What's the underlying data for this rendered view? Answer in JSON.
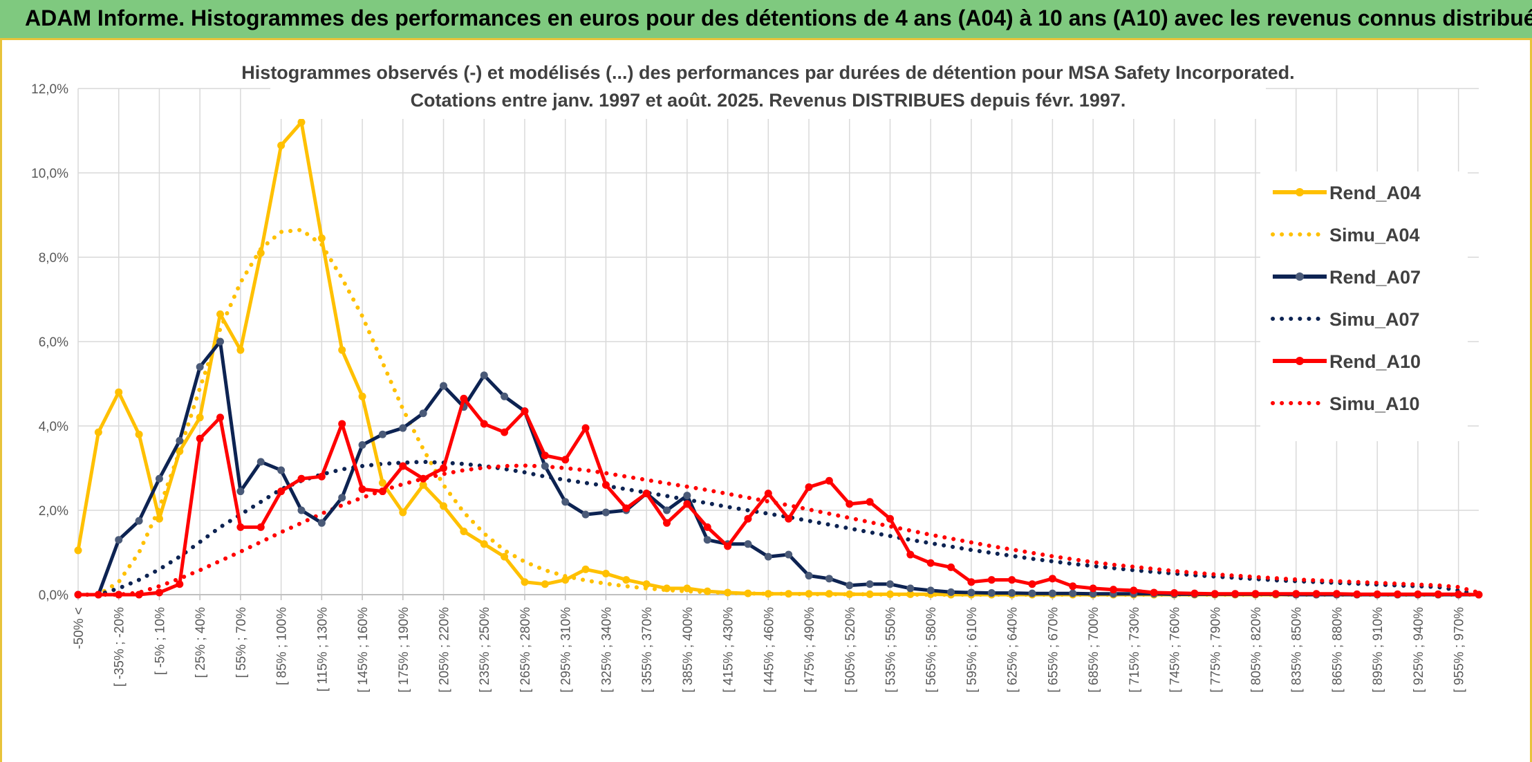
{
  "banner": {
    "title": "ADAM Informe. Histogrammes des performances en euros pour des détentions de 4 ans (A04) à 10 ans (A10) avec les revenus connus distribués"
  },
  "chart_data": {
    "type": "line",
    "title": "Histogrammes observés (-) et modélisés (...) des performances par durées de détention pour MSA Safety Incorporated.",
    "subtitle": "Cotations entre janv. 1997 et août. 2025. Revenus DISTRIBUES depuis févr. 1997.",
    "xlabel": "",
    "ylabel": "",
    "ylim": [
      0,
      12
    ],
    "y_unit": "%",
    "y_ticks": [
      "0,0%",
      "2,0%",
      "4,0%",
      "6,0%",
      "8,0%",
      "10,0%",
      "12,0%"
    ],
    "grid": true,
    "legend_position": "right",
    "x_labels": [
      "-50% <",
      "[ -35% ; -20%",
      "[ -5% ; 10%",
      "[ 25% ; 40%",
      "[ 55% ; 70%",
      "[ 85% ; 100%",
      "[ 115% ; 130%",
      "[ 145% ; 160%",
      "[ 175% ; 190%",
      "[ 205% ; 220%",
      "[ 235% ; 250%",
      "[ 265% ; 280%",
      "[ 295% ; 310%",
      "[ 325% ; 340%",
      "[ 355% ; 370%",
      "[ 385% ; 400%",
      "[ 415% ; 430%",
      "[ 445% ; 460%",
      "[ 475% ; 490%",
      "[ 505% ; 520%",
      "[ 535% ; 550%",
      "[ 565% ; 580%",
      "[ 595% ; 610%",
      "[ 625% ; 640%",
      "[ 655% ; 670%",
      "[ 685% ; 700%",
      "[ 715% ; 730%",
      "[ 745% ; 760%",
      "[ 775% ; 790%",
      "[ 805% ; 820%",
      "[ 835% ; 850%",
      "[ 865% ; 880%",
      "[ 895% ; 910%",
      "[ 925% ; 940%",
      "[ 955% ; 970%"
    ],
    "series": [
      {
        "name": "Rend_A04",
        "style": "solid",
        "color": "#ffc000",
        "marker": true,
        "values": [
          1.05,
          3.85,
          4.8,
          3.8,
          1.8,
          3.4,
          4.2,
          6.65,
          5.8,
          8.1,
          10.65,
          11.2,
          8.45,
          5.8,
          4.7,
          2.65,
          1.95,
          2.6,
          2.1,
          1.5,
          1.2,
          0.9,
          0.3,
          0.25,
          0.35,
          0.6,
          0.5,
          0.35,
          0.25,
          0.15,
          0.15,
          0.08,
          0.05,
          0.03,
          0.02,
          0.02,
          0.02,
          0.02,
          0.01,
          0.01,
          0.01,
          0.01,
          0.01,
          0.0,
          0,
          0,
          0,
          0,
          0,
          0,
          0,
          0,
          0,
          0,
          0,
          0,
          0,
          0,
          0,
          0,
          0,
          0,
          0,
          0,
          0,
          0,
          0,
          0,
          0,
          0
        ]
      },
      {
        "name": "Simu_A04",
        "style": "dotted",
        "color": "#ffc000",
        "marker": false,
        "values": [
          0,
          0,
          0.3,
          1.0,
          2.05,
          3.4,
          4.9,
          6.3,
          7.4,
          8.2,
          8.6,
          8.65,
          8.3,
          7.5,
          6.6,
          5.5,
          4.4,
          3.45,
          2.6,
          1.95,
          1.45,
          1.05,
          0.78,
          0.58,
          0.44,
          0.34,
          0.26,
          0.2,
          0.15,
          0.11,
          0.08,
          0.06,
          0.04,
          0.03,
          0.02,
          0.02,
          0.01,
          0.01,
          0.01,
          0.01,
          0.0,
          0.0,
          0,
          0,
          0,
          0,
          0,
          0,
          0,
          0,
          0,
          0,
          0,
          0,
          0,
          0,
          0,
          0,
          0,
          0,
          0,
          0,
          0,
          0,
          0,
          0,
          0,
          0,
          0,
          0
        ]
      },
      {
        "name": "Rend_A07",
        "style": "solid",
        "color": "#0d2352",
        "marker": true,
        "values": [
          0,
          0,
          1.3,
          1.75,
          2.75,
          3.65,
          5.4,
          6.0,
          2.45,
          3.15,
          2.95,
          2.0,
          1.7,
          2.3,
          3.55,
          3.8,
          3.95,
          4.3,
          4.95,
          4.45,
          5.2,
          4.7,
          4.35,
          3.05,
          2.2,
          1.9,
          1.95,
          2.0,
          2.4,
          2.0,
          2.35,
          1.3,
          1.2,
          1.2,
          0.9,
          0.95,
          0.45,
          0.38,
          0.22,
          0.25,
          0.25,
          0.15,
          0.1,
          0.06,
          0.05,
          0.04,
          0.04,
          0.03,
          0.03,
          0.03,
          0.02,
          0.02,
          0.02,
          0.02,
          0.01,
          0.01,
          0.01,
          0.01,
          0.01,
          0.01,
          0,
          0,
          0,
          0,
          0,
          0,
          0,
          0,
          0,
          0
        ]
      },
      {
        "name": "Simu_A07",
        "style": "dotted",
        "color": "#0d2352",
        "marker": false,
        "values": [
          0,
          0,
          0.15,
          0.35,
          0.6,
          0.9,
          1.25,
          1.6,
          1.9,
          2.2,
          2.5,
          2.7,
          2.85,
          2.97,
          3.05,
          3.1,
          3.13,
          3.15,
          3.13,
          3.1,
          3.05,
          2.98,
          2.9,
          2.8,
          2.72,
          2.65,
          2.58,
          2.5,
          2.42,
          2.34,
          2.25,
          2.17,
          2.08,
          2.0,
          1.92,
          1.84,
          1.75,
          1.66,
          1.57,
          1.48,
          1.39,
          1.3,
          1.22,
          1.14,
          1.06,
          0.99,
          0.92,
          0.85,
          0.79,
          0.73,
          0.68,
          0.63,
          0.58,
          0.54,
          0.5,
          0.46,
          0.43,
          0.4,
          0.37,
          0.34,
          0.32,
          0.3,
          0.28,
          0.26,
          0.24,
          0.22,
          0.2,
          0.18,
          0.1,
          0.0
        ]
      },
      {
        "name": "Rend_A10",
        "style": "solid",
        "color": "#ff0000",
        "marker": true,
        "values": [
          0,
          0,
          0,
          0,
          0.05,
          0.25,
          3.7,
          4.2,
          1.6,
          1.6,
          2.45,
          2.75,
          2.8,
          4.05,
          2.5,
          2.45,
          3.05,
          2.75,
          3.0,
          4.65,
          4.05,
          3.85,
          4.35,
          3.3,
          3.2,
          3.95,
          2.6,
          2.05,
          2.4,
          1.7,
          2.15,
          1.6,
          1.15,
          1.8,
          2.4,
          1.8,
          2.55,
          2.7,
          2.15,
          2.2,
          1.8,
          0.95,
          0.75,
          0.65,
          0.3,
          0.35,
          0.35,
          0.25,
          0.38,
          0.2,
          0.15,
          0.12,
          0.1,
          0.05,
          0.04,
          0.03,
          0.02,
          0.02,
          0.02,
          0.02,
          0.02,
          0.02,
          0.02,
          0.01,
          0.01,
          0.01,
          0.01,
          0.01,
          0.01,
          0.0
        ]
      },
      {
        "name": "Simu_A10",
        "style": "dotted",
        "color": "#ff0000",
        "marker": false,
        "values": [
          0,
          0,
          0,
          0.05,
          0.2,
          0.38,
          0.58,
          0.8,
          1.02,
          1.25,
          1.48,
          1.7,
          1.92,
          2.12,
          2.3,
          2.47,
          2.62,
          2.75,
          2.86,
          2.95,
          3.01,
          3.05,
          3.06,
          3.04,
          3.0,
          2.95,
          2.88,
          2.8,
          2.72,
          2.64,
          2.56,
          2.48,
          2.39,
          2.3,
          2.21,
          2.12,
          2.02,
          1.92,
          1.82,
          1.72,
          1.62,
          1.52,
          1.42,
          1.33,
          1.24,
          1.15,
          1.07,
          0.99,
          0.91,
          0.84,
          0.77,
          0.71,
          0.66,
          0.61,
          0.56,
          0.52,
          0.48,
          0.45,
          0.42,
          0.39,
          0.36,
          0.34,
          0.32,
          0.3,
          0.28,
          0.26,
          0.24,
          0.22,
          0.18,
          0.05
        ]
      }
    ]
  }
}
